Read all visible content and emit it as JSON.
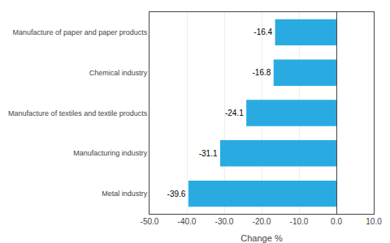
{
  "chart_data": {
    "type": "bar",
    "orientation": "horizontal",
    "categories": [
      "Metal industry",
      "Manufacturing industry",
      "Manufacture of textiles and textile products",
      "Chemical industry",
      "Manufacture of paper and paper products"
    ],
    "values": [
      -39.6,
      -31.1,
      -24.1,
      -16.8,
      -16.4
    ],
    "color": "#29abe2",
    "xlabel": "Change %",
    "xlim": [
      -50,
      10
    ],
    "xticks": [
      {
        "value": -50,
        "label": "-50.0"
      },
      {
        "value": -40,
        "label": "-40.0"
      },
      {
        "value": -30,
        "label": "-30.0"
      },
      {
        "value": -20,
        "label": "-20.0"
      },
      {
        "value": -10,
        "label": "-10.0"
      },
      {
        "value": 0,
        "label": "0.0"
      },
      {
        "value": 10,
        "label": "10.0"
      }
    ],
    "grid": true,
    "data_labels": true
  }
}
